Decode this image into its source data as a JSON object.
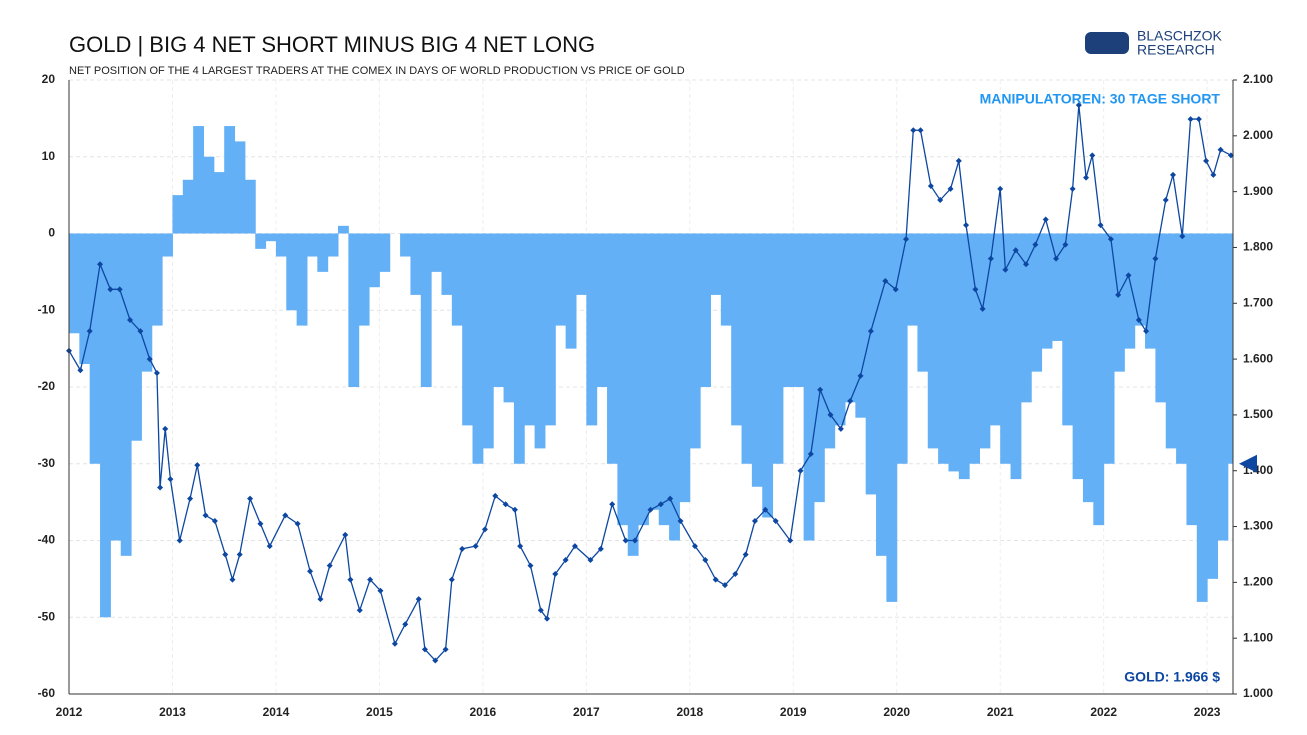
{
  "chart_data": {
    "type": "bar_line",
    "title": "GOLD | BIG 4 NET SHORT MINUS BIG 4 NET LONG",
    "subtitle": "NET POSITION OF THE 4 LARGEST TRADERS AT THE COMEX IN DAYS OF WORLD PRODUCTION VS PRICE OF GOLD",
    "annotations": [
      "MANIPULATOREN: 30 TAGE SHORT",
      "GOLD: 1.966 $"
    ],
    "logo": [
      "BLASCHZOK",
      "RESEARCH"
    ],
    "xlim": [
      2012,
      2023.25
    ],
    "xticks": [
      2012,
      2013,
      2014,
      2015,
      2016,
      2017,
      2018,
      2019,
      2020,
      2021,
      2022,
      2023
    ],
    "ylim": [
      -60,
      20
    ],
    "yticks": [
      -60,
      -50,
      -40,
      -30,
      -20,
      -10,
      0,
      10,
      20
    ],
    "y2lim": [
      1000,
      2100
    ],
    "y2ticks": [
      {
        "value": 1000,
        "label": "1.000"
      },
      {
        "value": 1100,
        "label": "1.100"
      },
      {
        "value": 1200,
        "label": "1.200"
      },
      {
        "value": 1300,
        "label": "1.300"
      },
      {
        "value": 1400,
        "label": "1.400"
      },
      {
        "value": 1500,
        "label": "1.500"
      },
      {
        "value": 1600,
        "label": "1.600"
      },
      {
        "value": 1700,
        "label": "1.700"
      },
      {
        "value": 1800,
        "label": "1.800"
      },
      {
        "value": 1900,
        "label": "1.900"
      },
      {
        "value": 2000,
        "label": "2.000"
      },
      {
        "value": 2100,
        "label": "2.100"
      }
    ],
    "grid": true,
    "series": [
      {
        "type": "bar",
        "color": "#64b0f6",
        "x": [
          2012.0,
          2012.1,
          2012.2,
          2012.3,
          2012.4,
          2012.5,
          2012.6,
          2012.7,
          2012.8,
          2012.9,
          2013.0,
          2013.1,
          2013.2,
          2013.3,
          2013.4,
          2013.5,
          2013.6,
          2013.7,
          2013.8,
          2013.9,
          2014.0,
          2014.1,
          2014.2,
          2014.3,
          2014.4,
          2014.5,
          2014.6,
          2014.7,
          2014.8,
          2014.9,
          2015.0,
          2015.1,
          2015.2,
          2015.3,
          2015.4,
          2015.5,
          2015.6,
          2015.7,
          2015.8,
          2015.9,
          2016.0,
          2016.1,
          2016.2,
          2016.3,
          2016.4,
          2016.5,
          2016.6,
          2016.7,
          2016.8,
          2016.9,
          2017.0,
          2017.1,
          2017.2,
          2017.3,
          2017.4,
          2017.5,
          2017.6,
          2017.7,
          2017.8,
          2017.9,
          2018.0,
          2018.1,
          2018.2,
          2018.3,
          2018.4,
          2018.5,
          2018.6,
          2018.7,
          2018.8,
          2018.9,
          2019.0,
          2019.1,
          2019.2,
          2019.3,
          2019.4,
          2019.5,
          2019.6,
          2019.7,
          2019.8,
          2019.9,
          2020.0,
          2020.1,
          2020.2,
          2020.3,
          2020.4,
          2020.5,
          2020.6,
          2020.7,
          2020.8,
          2020.9,
          2021.0,
          2021.1,
          2021.2,
          2021.3,
          2021.4,
          2021.5,
          2021.6,
          2021.7,
          2021.8,
          2021.9,
          2022.0,
          2022.1,
          2022.2,
          2022.3,
          2022.4,
          2022.5,
          2022.6,
          2022.7,
          2022.8,
          2022.9,
          2023.0,
          2023.1,
          2023.2
        ],
        "values": [
          -13,
          -17,
          -30,
          -50,
          -40,
          -42,
          -27,
          -18,
          -12,
          -3,
          5,
          7,
          14,
          10,
          8,
          14,
          12,
          7,
          -2,
          -1,
          -3,
          -10,
          -12,
          -3,
          -5,
          -3,
          1,
          -20,
          -12,
          -7,
          -5,
          0,
          -3,
          -8,
          -20,
          -5,
          -8,
          -12,
          -25,
          -30,
          -28,
          -20,
          -22,
          -30,
          -25,
          -28,
          -25,
          -12,
          -15,
          -8,
          -25,
          -20,
          -30,
          -38,
          -42,
          -38,
          -36,
          -38,
          -40,
          -35,
          -28,
          -20,
          -8,
          -12,
          -25,
          -30,
          -33,
          -37,
          -30,
          -20,
          -20,
          -40,
          -35,
          -28,
          -25,
          -22,
          -24,
          -34,
          -42,
          -48,
          -30,
          -12,
          -18,
          -28,
          -30,
          -31,
          -32,
          -30,
          -28,
          -25,
          -30,
          -32,
          -22,
          -18,
          -15,
          -14,
          -25,
          -32,
          -35,
          -38,
          -30,
          -18,
          -15,
          -12,
          -15,
          -22,
          -28,
          -30,
          -38,
          -48,
          -45,
          -40,
          -30
        ]
      },
      {
        "type": "line",
        "axis": "y2",
        "color": "#0d47a1",
        "x": [
          2012.0,
          2012.11,
          2012.2,
          2012.3,
          2012.4,
          2012.49,
          2012.59,
          2012.69,
          2012.78,
          2012.85,
          2012.88,
          2012.93,
          2012.98,
          2013.07,
          2013.17,
          2013.24,
          2013.32,
          2013.41,
          2013.51,
          2013.58,
          2013.65,
          2013.75,
          2013.85,
          2013.94,
          2014.09,
          2014.21,
          2014.33,
          2014.43,
          2014.52,
          2014.67,
          2014.72,
          2014.81,
          2014.91,
          2015.01,
          2015.15,
          2015.25,
          2015.38,
          2015.44,
          2015.54,
          2015.64,
          2015.7,
          2015.8,
          2015.93,
          2016.02,
          2016.12,
          2016.22,
          2016.31,
          2016.36,
          2016.46,
          2016.56,
          2016.62,
          2016.7,
          2016.8,
          2016.89,
          2017.04,
          2017.14,
          2017.25,
          2017.38,
          2017.47,
          2017.62,
          2017.72,
          2017.81,
          2017.91,
          2018.05,
          2018.15,
          2018.25,
          2018.34,
          2018.44,
          2018.54,
          2018.63,
          2018.73,
          2018.83,
          2018.97,
          2019.07,
          2019.17,
          2019.26,
          2019.36,
          2019.46,
          2019.55,
          2019.65,
          2019.75,
          2019.89,
          2019.99,
          2020.09,
          2020.16,
          2020.23,
          2020.33,
          2020.42,
          2020.52,
          2020.6,
          2020.67,
          2020.76,
          2020.83,
          2020.91,
          2021.0,
          2021.05,
          2021.15,
          2021.25,
          2021.34,
          2021.44,
          2021.54,
          2021.63,
          2021.7,
          2021.76,
          2021.83,
          2021.89,
          2021.97,
          2022.07,
          2022.14,
          2022.24,
          2022.34,
          2022.41,
          2022.5,
          2022.6,
          2022.67,
          2022.76,
          2022.84,
          2022.92,
          2022.99,
          2023.06,
          2023.13,
          2023.23
        ],
        "values": [
          1615,
          1580,
          1650,
          1770,
          1725,
          1725,
          1670,
          1650,
          1600,
          1575,
          1370,
          1475,
          1385,
          1275,
          1350,
          1410,
          1320,
          1310,
          1250,
          1205,
          1250,
          1350,
          1305,
          1265,
          1320,
          1305,
          1220,
          1170,
          1230,
          1285,
          1205,
          1150,
          1205,
          1185,
          1090,
          1125,
          1170,
          1080,
          1060,
          1080,
          1205,
          1260,
          1265,
          1295,
          1355,
          1340,
          1330,
          1265,
          1230,
          1150,
          1135,
          1215,
          1240,
          1265,
          1240,
          1260,
          1340,
          1275,
          1275,
          1330,
          1340,
          1350,
          1310,
          1265,
          1240,
          1205,
          1195,
          1215,
          1250,
          1310,
          1330,
          1310,
          1275,
          1400,
          1430,
          1545,
          1500,
          1475,
          1525,
          1570,
          1650,
          1740,
          1725,
          1815,
          2010,
          2010,
          1910,
          1885,
          1905,
          1955,
          1840,
          1725,
          1690,
          1780,
          1905,
          1760,
          1795,
          1770,
          1805,
          1850,
          1780,
          1805,
          1905,
          2055,
          1925,
          1965,
          1840,
          1815,
          1715,
          1750,
          1670,
          1650,
          1780,
          1885,
          1930,
          1820,
          2030,
          2030,
          1955,
          1930,
          1975,
          1965
        ]
      }
    ]
  }
}
